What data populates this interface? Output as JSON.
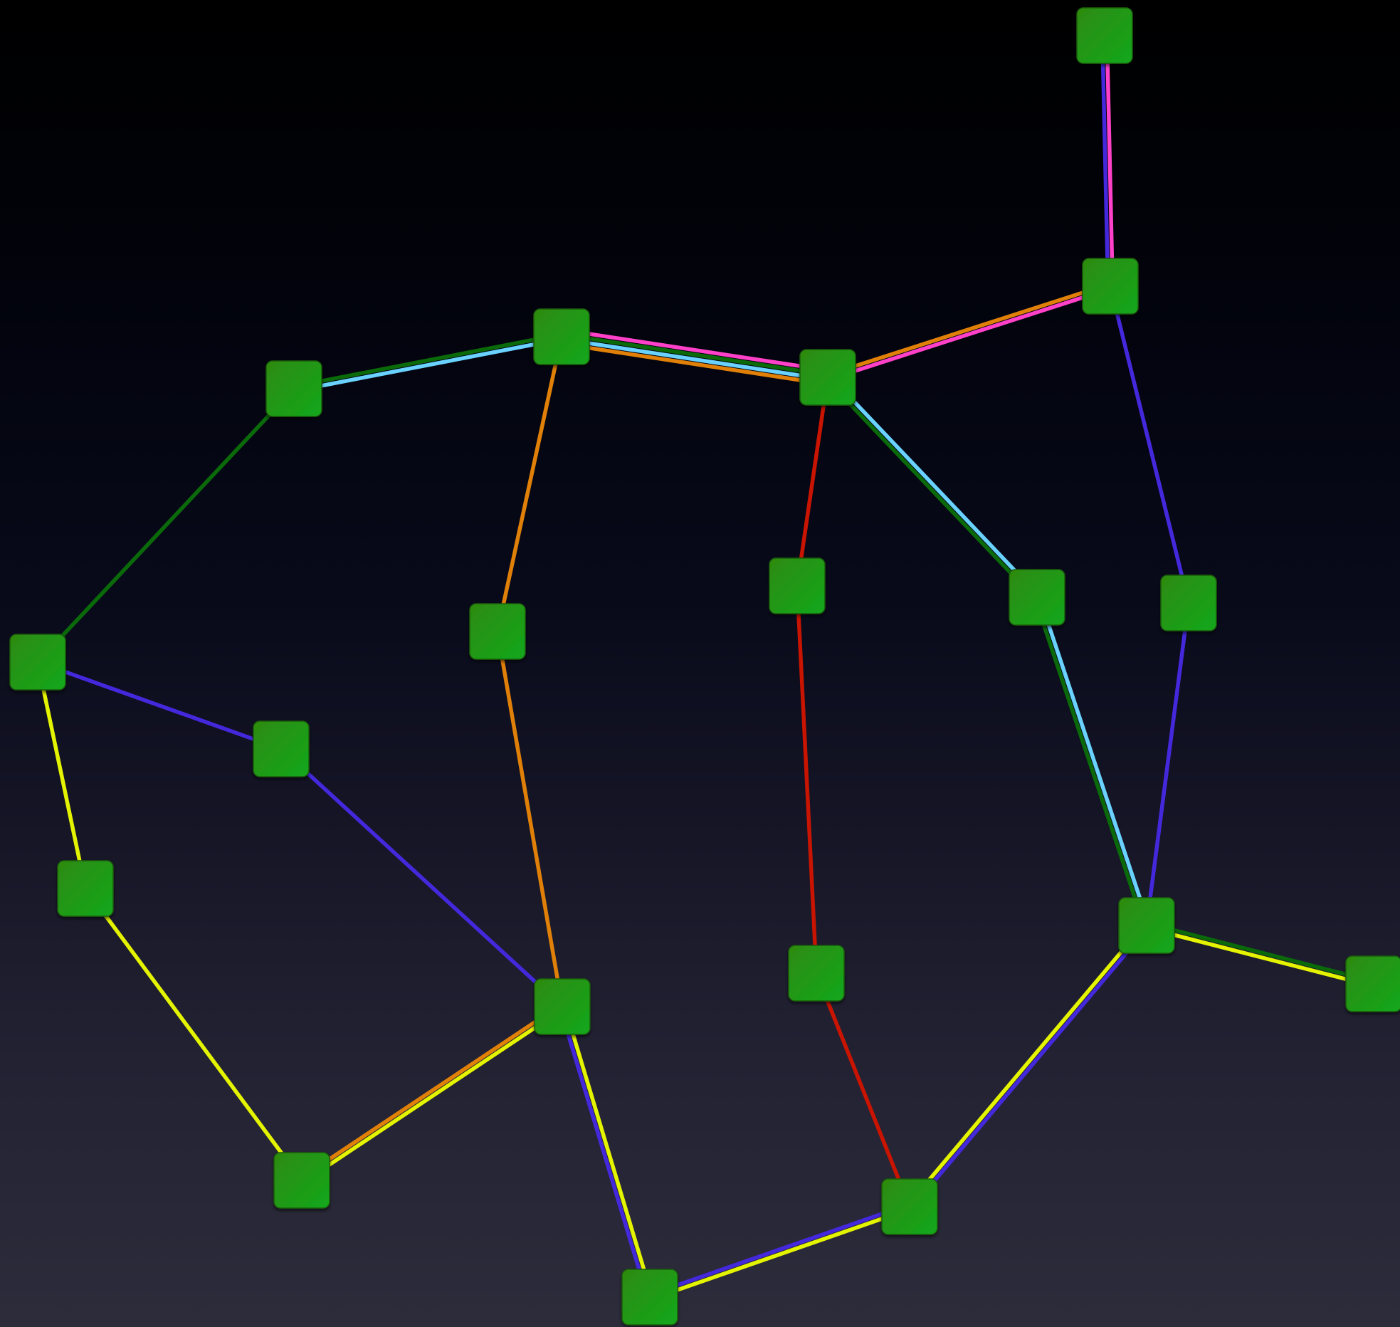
{
  "colors": {
    "background_top": "#000000",
    "background_bottom": "#2c2c3b",
    "node_fill_top": "#2f8a10",
    "node_fill_bottom": "#12a81c",
    "dark_green": "#0a6a0a",
    "light_blue": "#6ad2ff",
    "orange": "#e08008",
    "pink": "#ff40c8",
    "indigo": "#4428dc",
    "yellow": "#e4f400",
    "red": "#c81400"
  },
  "graph": {
    "nodes": [
      {
        "id": "n1"
      },
      {
        "id": "n2"
      },
      {
        "id": "n3"
      },
      {
        "id": "n4"
      },
      {
        "id": "n5"
      },
      {
        "id": "n6"
      },
      {
        "id": "n7"
      },
      {
        "id": "n8"
      },
      {
        "id": "n9"
      },
      {
        "id": "n10"
      },
      {
        "id": "n11"
      },
      {
        "id": "n12"
      },
      {
        "id": "n13"
      },
      {
        "id": "n14"
      },
      {
        "id": "n15"
      },
      {
        "id": "n16"
      },
      {
        "id": "n17"
      },
      {
        "id": "n18"
      },
      {
        "id": "n19"
      },
      {
        "id": "n20"
      }
    ],
    "edges": [
      {
        "from": "n1",
        "to": "n2",
        "lines": [
          "pink",
          "indigo"
        ]
      },
      {
        "from": "n2",
        "to": "n4",
        "lines": [
          "pink",
          "orange"
        ]
      },
      {
        "from": "n2",
        "to": "n9",
        "lines": [
          "indigo"
        ]
      },
      {
        "from": "n3",
        "to": "n4",
        "lines": [
          "pink",
          "dark_green",
          "light_blue",
          "orange"
        ]
      },
      {
        "from": "n5",
        "to": "n3",
        "lines": [
          "dark_green",
          "light_blue"
        ]
      },
      {
        "from": "n5",
        "to": "n10",
        "lines": [
          "dark_green"
        ]
      },
      {
        "from": "n3",
        "to": "n6",
        "lines": [
          "orange"
        ]
      },
      {
        "from": "n6",
        "to": "n14",
        "lines": [
          "orange"
        ]
      },
      {
        "from": "n4",
        "to": "n7",
        "lines": [
          "red"
        ]
      },
      {
        "from": "n7",
        "to": "n15",
        "lines": [
          "red"
        ]
      },
      {
        "from": "n15",
        "to": "n18",
        "lines": [
          "red"
        ]
      },
      {
        "from": "n4",
        "to": "n8",
        "lines": [
          "light_blue",
          "dark_green"
        ]
      },
      {
        "from": "n8",
        "to": "n12",
        "lines": [
          "light_blue",
          "dark_green"
        ]
      },
      {
        "from": "n9",
        "to": "n12",
        "lines": [
          "indigo"
        ]
      },
      {
        "from": "n12",
        "to": "n16",
        "lines": [
          "dark_green",
          "yellow"
        ]
      },
      {
        "from": "n12",
        "to": "n18",
        "lines": [
          "indigo",
          "yellow"
        ]
      },
      {
        "from": "n10",
        "to": "n11",
        "lines": [
          "indigo"
        ]
      },
      {
        "from": "n11",
        "to": "n14",
        "lines": [
          "indigo"
        ]
      },
      {
        "from": "n10",
        "to": "n13",
        "lines": [
          "yellow"
        ]
      },
      {
        "from": "n13",
        "to": "n17",
        "lines": [
          "yellow"
        ]
      },
      {
        "from": "n17",
        "to": "n14",
        "lines": [
          "orange",
          "yellow"
        ]
      },
      {
        "from": "n14",
        "to": "n19",
        "lines": [
          "yellow",
          "indigo"
        ]
      },
      {
        "from": "n19",
        "to": "n18",
        "lines": [
          "indigo",
          "yellow"
        ]
      }
    ]
  }
}
